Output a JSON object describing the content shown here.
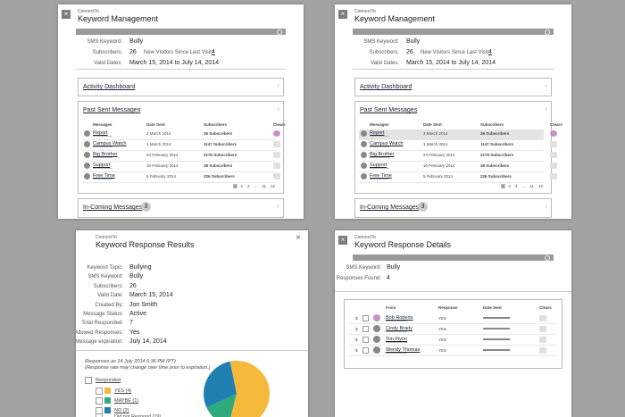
{
  "management": {
    "app": "ConnectTo",
    "title": "Keyword Management",
    "fields": [
      {
        "label": "SMS Keyword:",
        "value": "Bully"
      },
      {
        "label": "Subscribers:",
        "value": 26
      },
      {
        "label": "Valid Dates:",
        "value": "March 15, 2014 to July 14, 2014"
      }
    ],
    "visitors": {
      "label": "New Visitors Since Last Visit:",
      "value": 4
    },
    "activity": "Activity Dashboard",
    "past": "Past Sent Messages",
    "headers": [
      "Messages",
      "Date Sent",
      "Subscribers",
      "Clears"
    ],
    "rows": [
      {
        "name": "Report",
        "date": "3 March 2014",
        "subs": "26 Subscribers"
      },
      {
        "name": "Campus Watch",
        "date": "1 March 2014",
        "subs": "1147 Subscribers"
      },
      {
        "name": "Big Brother",
        "date": "24 February 2014",
        "subs": "2176 Subscribers"
      },
      {
        "name": "Support",
        "date": "10 February 2014",
        "subs": "38 Subscribers"
      },
      {
        "name": "Free Time",
        "date": "5 February 2014",
        "subs": "226 Subscribers"
      }
    ],
    "pages": [
      "1",
      "2",
      "3",
      "...",
      "11",
      "12"
    ],
    "incoming": "In-Coming Messages",
    "incoming_count": 3
  },
  "results": {
    "app": "ConnectTo",
    "title": "Keyword Response Results",
    "fields": [
      {
        "label": "Keyword Topic:",
        "value": "Bullying"
      },
      {
        "label": "SMS Keyword:",
        "value": "Bully"
      },
      {
        "label": "Subscribers:",
        "value": 26
      },
      {
        "label": "Valid Date:",
        "value": "March 15, 2014"
      },
      {
        "label": "Created By:",
        "value": "Jon Smith"
      },
      {
        "label": "Message Status:",
        "value": "Active"
      },
      {
        "label": "Total Responded:",
        "value": 7
      },
      {
        "label": "Allowed Responses:",
        "value": "Yes"
      },
      {
        "label": "Message expiration:",
        "value": "July 14, 2014"
      }
    ],
    "note": "Responses as 14 July 2014 6:36 PM (PT)",
    "note2": "(Response rate may change over time prior to expiration.)",
    "responded": "Responded",
    "responses": {
      "labels": [
        "YES (4)",
        "MAYBE (1)",
        "NO (2)"
      ],
      "values": [
        4,
        1,
        2
      ],
      "colors": [
        "#f7b93c",
        "#2eaa7c",
        "#1f7fb0"
      ]
    },
    "not_responded": "Did not Respond (19)"
  },
  "details": {
    "app": "ConnectTo",
    "title": "Keyword Response Details",
    "fields": [
      {
        "label": "SMS Keyword:",
        "value": "Bully"
      },
      {
        "label": "Responses Found:",
        "value": 4
      }
    ],
    "headers": [
      "From",
      "Response",
      "Date Sent",
      "Clears"
    ],
    "rows": [
      {
        "name": "Bob Roberts",
        "response": "YES"
      },
      {
        "name": "Cindy Brady",
        "response": "YES"
      },
      {
        "name": "Tim Flynn",
        "response": "YES"
      },
      {
        "name": "Wendy Thomas",
        "response": "YES"
      }
    ]
  }
}
